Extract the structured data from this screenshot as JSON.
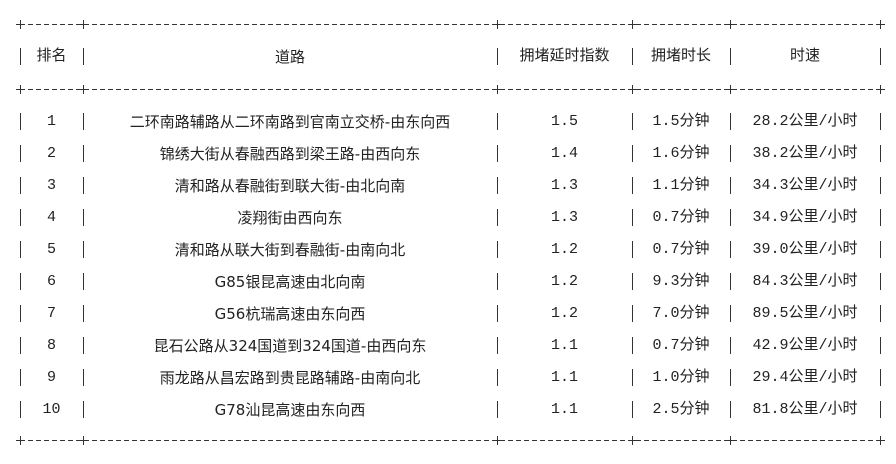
{
  "table": {
    "headers": [
      "排名",
      "道路",
      "拥堵延时指数",
      "拥堵时长",
      "时速"
    ],
    "rows": [
      [
        "1",
        "二环南路辅路从二环南路到官南立交桥-由东向西",
        "1.5",
        "1.5分钟",
        "28.2公里/小时"
      ],
      [
        "2",
        "锦绣大街从春融西路到梁王路-由西向东",
        "1.4",
        "1.6分钟",
        "38.2公里/小时"
      ],
      [
        "3",
        "清和路从春融街到联大街-由北向南",
        "1.3",
        "1.1分钟",
        "34.3公里/小时"
      ],
      [
        "4",
        "凌翔街由西向东",
        "1.3",
        "0.7分钟",
        "34.9公里/小时"
      ],
      [
        "5",
        "清和路从联大街到春融街-由南向北",
        "1.2",
        "0.7分钟",
        "39.0公里/小时"
      ],
      [
        "6",
        "G85银昆高速由北向南",
        "1.2",
        "9.3分钟",
        "84.3公里/小时"
      ],
      [
        "7",
        "G56杭瑞高速由东向西",
        "1.2",
        "7.0分钟",
        "89.5公里/小时"
      ],
      [
        "8",
        "昆石公路从324国道到324国道-由西向东",
        "1.1",
        "0.7分钟",
        "42.9公里/小时"
      ],
      [
        "9",
        "雨龙路从昌宏路到贵昆路辅路-由南向北",
        "1.1",
        "1.0分钟",
        "29.4公里/小时"
      ],
      [
        "10",
        "G78汕昆高速由东向西",
        "1.1",
        "2.5分钟",
        "81.8公里/小时"
      ]
    ]
  }
}
